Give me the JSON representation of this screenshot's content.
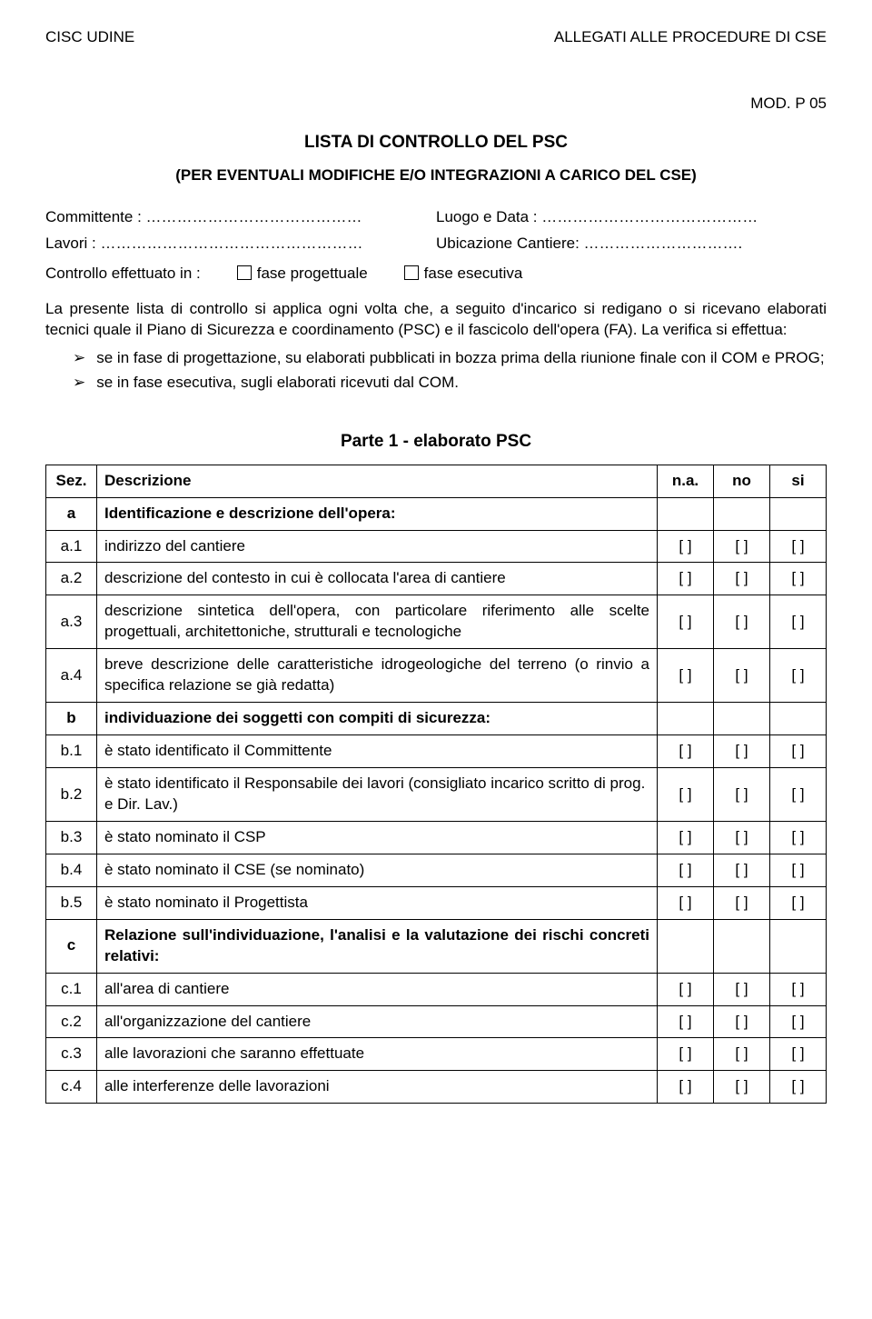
{
  "header": {
    "left": "CISC UDINE",
    "right": "ALLEGATI ALLE PROCEDURE DI CSE"
  },
  "mod": "MOD. P 05",
  "title": "LISTA DI CONTROLLO DEL PSC",
  "subtitle": "(PER EVENTUALI MODIFICHE E/O INTEGRAZIONI A CARICO DEL CSE)",
  "fields": {
    "committente": "Committente : ……………………………………",
    "luogo": "Luogo e Data : ……………………………………",
    "lavori": "Lavori : ……………………………………………",
    "ubicazione": "Ubicazione Cantiere: …………………………."
  },
  "controllo": {
    "label": "Controllo effettuato in :",
    "opt1": "fase progettuale",
    "opt2": "fase esecutiva"
  },
  "intro1": "La presente lista di controllo si applica ogni volta che, a seguito d'incarico si redigano o si ricevano elaborati tecnici quale il Piano di Sicurezza e coordinamento (PSC) e il fascicolo dell'opera (FA). La verifica si effettua:",
  "bullets": [
    "se in fase di progettazione, su elaborati pubblicati in bozza prima della riunione finale con il COM e PROG;",
    "se in fase esecutiva, sugli elaborati ricevuti dal COM."
  ],
  "partTitle": "Parte 1 -  elaborato PSC",
  "table": {
    "headers": {
      "sez": "Sez.",
      "desc": "Descrizione",
      "na": "n.a.",
      "no": "no",
      "si": "si"
    },
    "checkMark": "[ ]",
    "rows": [
      {
        "sez": "a",
        "desc": "Identificazione e descrizione dell'opera:",
        "section": true
      },
      {
        "sez": "a.1",
        "desc": "indirizzo del cantiere",
        "check": true
      },
      {
        "sez": "a.2",
        "desc": "descrizione del contesto in cui è collocata l'area di cantiere",
        "check": true
      },
      {
        "sez": "a.3",
        "desc": "descrizione sintetica dell'opera, con particolare riferimento alle scelte progettuali, architettoniche, strutturali e tecnologiche",
        "check": true,
        "justify": true
      },
      {
        "sez": "a.4",
        "desc": "breve descrizione delle caratteristiche idrogeologiche del terreno (o  rinvio a specifica relazione se già redatta)",
        "check": true,
        "justify": true
      },
      {
        "sez": "b",
        "desc": "individuazione dei soggetti con compiti di sicurezza:",
        "section": true
      },
      {
        "sez": "b.1",
        "desc": "è stato identificato il Committente",
        "check": true
      },
      {
        "sez": "b.2",
        "desc": "è stato identificato il Responsabile dei lavori (consigliato incarico scritto di  prog. e Dir. Lav.)",
        "check": true
      },
      {
        "sez": "b.3",
        "desc": "è stato nominato il CSP",
        "check": true
      },
      {
        "sez": "b.4",
        "desc": "è stato nominato il CSE (se nominato)",
        "check": true
      },
      {
        "sez": "b.5",
        "desc": "è stato nominato il Progettista",
        "check": true
      },
      {
        "sez": "c",
        "desc": "Relazione sull'individuazione, l'analisi e la valutazione dei rischi concreti relativi:",
        "section": true,
        "justify": true
      },
      {
        "sez": "c.1",
        "desc": "all'area di cantiere",
        "check": true
      },
      {
        "sez": "c.2",
        "desc": "all'organizzazione del cantiere",
        "check": true
      },
      {
        "sez": "c.3",
        "desc": "alle lavorazioni che saranno effettuate",
        "check": true
      },
      {
        "sez": "c.4",
        "desc": "alle interferenze delle lavorazioni",
        "check": true
      }
    ]
  }
}
